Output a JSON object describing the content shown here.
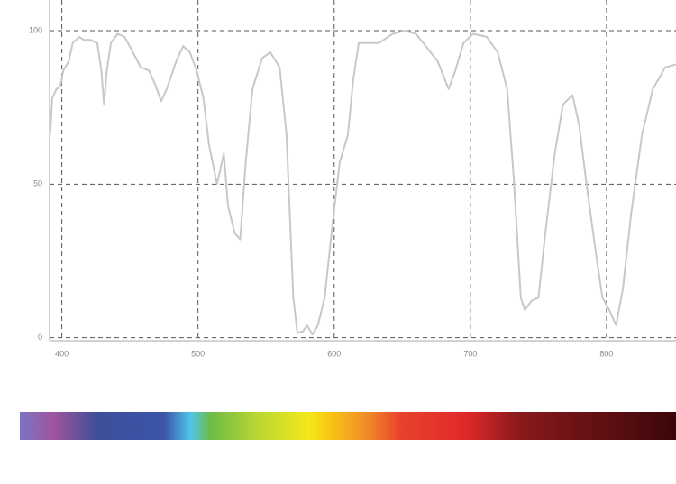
{
  "chart_data": {
    "type": "line",
    "x": [
      391.4,
      393,
      396,
      399,
      401,
      405,
      408,
      413,
      416,
      421,
      426,
      429,
      431,
      433,
      436,
      441,
      446,
      451,
      458,
      464,
      469,
      473,
      477,
      484,
      489,
      494,
      499,
      504,
      508,
      514,
      519,
      522,
      527,
      531,
      535,
      540,
      547,
      553,
      560,
      565,
      570,
      573,
      577,
      580,
      584,
      588,
      593,
      598,
      604,
      610,
      614,
      618,
      626,
      633,
      643,
      652,
      660,
      669,
      676,
      684,
      689,
      695,
      702,
      712,
      720,
      727,
      732,
      737,
      740,
      745,
      750,
      755,
      762,
      768,
      775,
      780,
      785,
      792,
      797,
      802,
      807,
      812,
      818,
      826,
      834,
      843,
      851
    ],
    "values": [
      66,
      78,
      81,
      82,
      87,
      90,
      96,
      98,
      97,
      97,
      96,
      87,
      76,
      87,
      96,
      99,
      98,
      94,
      88,
      87,
      82,
      77,
      81,
      90,
      95,
      93,
      87,
      78,
      63,
      50,
      60,
      43,
      34,
      32,
      57,
      81,
      91,
      93,
      88,
      66,
      13,
      1.5,
      2,
      4,
      1,
      4,
      13,
      34,
      57,
      66,
      84,
      96,
      96,
      96,
      99,
      100,
      99,
      94,
      90,
      81,
      87,
      96,
      99,
      98,
      93,
      81,
      51,
      13,
      9,
      12,
      13,
      34,
      60,
      76,
      79,
      69,
      51,
      28,
      13,
      9,
      4,
      16,
      40,
      66,
      81,
      88,
      89
    ],
    "color": "#c8c8c8",
    "xlim": [
      391,
      851
    ],
    "ylim": [
      -1,
      110
    ],
    "xticks": [
      400,
      500,
      600,
      700,
      800
    ],
    "yticks": [
      0,
      50,
      100
    ],
    "grid": true
  }
}
